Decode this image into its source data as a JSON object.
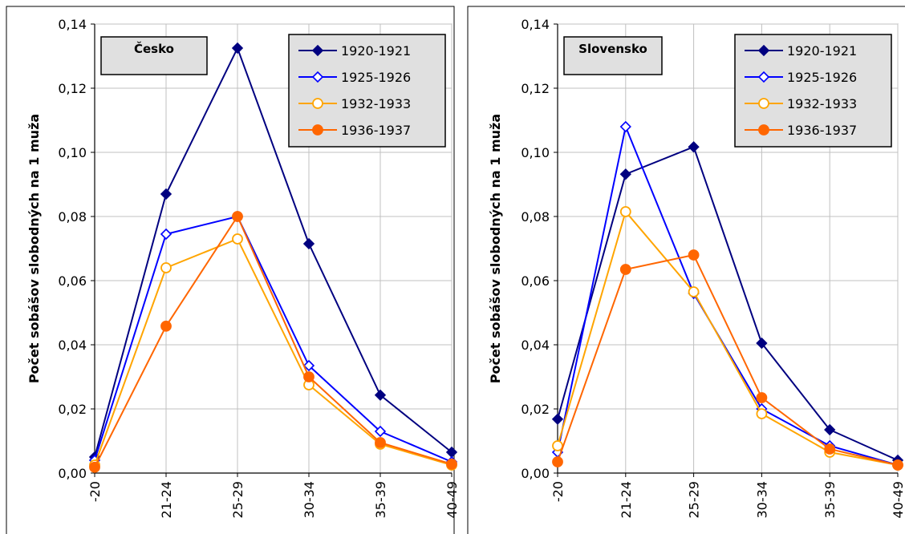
{
  "chart_data": [
    {
      "type": "line",
      "title": "Česko",
      "ylabel": "Počet sobášov slobodných na 1 muža",
      "xlabel": "",
      "categories": [
        "-20",
        "21-24",
        "25-29",
        "30-34",
        "35-39",
        "40-49"
      ],
      "ylim": [
        0,
        0.14
      ],
      "yticks": [
        "0,00",
        "0,02",
        "0,04",
        "0,06",
        "0,08",
        "0,10",
        "0,12",
        "0,14"
      ],
      "grid": true,
      "legend_position": "top-right",
      "series": [
        {
          "name": "1920-1921",
          "values": [
            0.005,
            0.087,
            0.1325,
            0.0715,
            0.0243,
            0.0065
          ]
        },
        {
          "name": "1925-1926",
          "values": [
            0.004,
            0.0745,
            0.08,
            0.0335,
            0.013,
            0.0035
          ]
        },
        {
          "name": "1932-1933",
          "values": [
            0.0025,
            0.064,
            0.073,
            0.0275,
            0.009,
            0.0025
          ]
        },
        {
          "name": "1936-1937",
          "values": [
            0.0018,
            0.0458,
            0.08,
            0.03,
            0.0095,
            0.0028
          ]
        }
      ]
    },
    {
      "type": "line",
      "title": "Slovensko",
      "ylabel": "Počet sobášov slobodných na 1 muža",
      "xlabel": "",
      "categories": [
        "-20",
        "21-24",
        "25-29",
        "30-34",
        "35-39",
        "40-49"
      ],
      "ylim": [
        0,
        0.14
      ],
      "yticks": [
        "0,00",
        "0,02",
        "0,04",
        "0,06",
        "0,08",
        "0,10",
        "0,12",
        "0,14"
      ],
      "grid": true,
      "legend_position": "top-right",
      "series": [
        {
          "name": "1920-1921",
          "values": [
            0.0168,
            0.0932,
            0.1017,
            0.0405,
            0.0135,
            0.004
          ]
        },
        {
          "name": "1925-1926",
          "values": [
            0.0065,
            0.108,
            0.056,
            0.02,
            0.0085,
            0.0025
          ]
        },
        {
          "name": "1932-1933",
          "values": [
            0.0085,
            0.0815,
            0.0565,
            0.0185,
            0.0065,
            0.0025
          ]
        },
        {
          "name": "1936-1937",
          "values": [
            0.0035,
            0.0635,
            0.068,
            0.0235,
            0.0075,
            0.0025
          ]
        }
      ]
    }
  ],
  "style": {
    "series_colors": [
      "#000080",
      "#0000ff",
      "#ffa500",
      "#ff6600"
    ],
    "series_markers": [
      "diamond-filled",
      "diamond-open",
      "circle-open",
      "circle-filled"
    ],
    "frame_border_color": "#000000",
    "grid_color": "#c0c0c0",
    "box_fill_color": "#e0e0e0"
  }
}
